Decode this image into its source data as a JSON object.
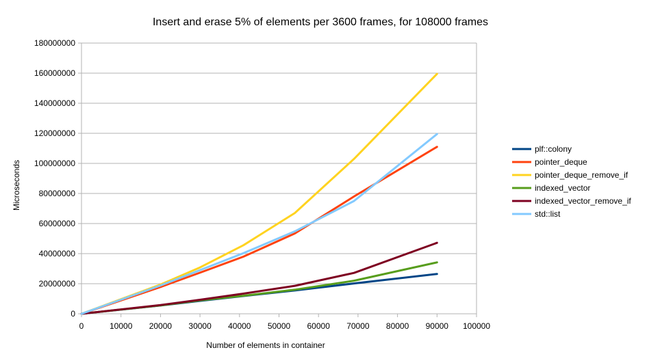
{
  "chart_data": {
    "type": "line",
    "title": "Insert and erase 5% of elements per 3600 frames, for 108000 frames",
    "xlabel": "Number of elements in container",
    "ylabel": "Microseconds",
    "xlim": [
      0,
      100000
    ],
    "ylim": [
      0,
      180000000
    ],
    "x_ticks": [
      "0",
      "10000",
      "20000",
      "30000",
      "40000",
      "50000",
      "60000",
      "70000",
      "80000",
      "90000",
      "100000"
    ],
    "y_ticks": [
      "0",
      "20000000",
      "40000000",
      "60000000",
      "80000000",
      "100000000",
      "120000000",
      "140000000",
      "160000000",
      "180000000"
    ],
    "x": [
      10,
      20000,
      30000,
      41000,
      54000,
      69000,
      90000
    ],
    "grid": "horizontal",
    "legend_position": "right",
    "series": [
      {
        "name": "plf::colony",
        "color": "#004586",
        "values": [
          0,
          5500000,
          8600000,
          11800000,
          15500000,
          20200000,
          26500000
        ]
      },
      {
        "name": "pointer_deque",
        "color": "#ff420e",
        "values": [
          0,
          17800000,
          27300000,
          38000000,
          53400000,
          78000000,
          111000000
        ]
      },
      {
        "name": "pointer_deque_remove_if",
        "color": "#ffd320",
        "values": [
          0,
          19400000,
          30800000,
          45600000,
          67000000,
          103000000,
          159500000
        ]
      },
      {
        "name": "indexed_vector",
        "color": "#579d1c",
        "values": [
          0,
          5600000,
          8900000,
          12000000,
          16000000,
          22000000,
          34200000
        ]
      },
      {
        "name": "indexed_vector_remove_if",
        "color": "#7e0021",
        "values": [
          0,
          5800000,
          9300000,
          13400000,
          18600000,
          27200000,
          47200000
        ]
      },
      {
        "name": "std::list",
        "color": "#83caff",
        "values": [
          0,
          18800000,
          29000000,
          40300000,
          54800000,
          75000000,
          119500000
        ]
      }
    ]
  }
}
